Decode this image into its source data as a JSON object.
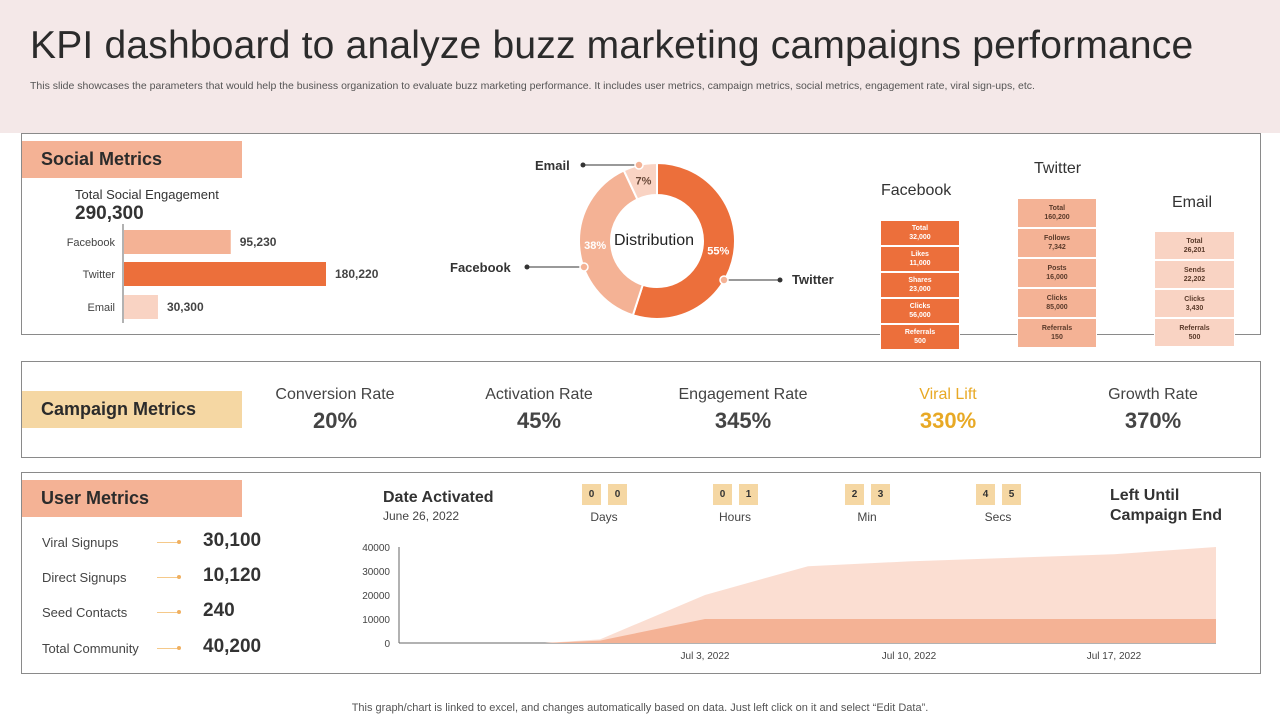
{
  "header": {
    "title": "KPI dashboard to analyze buzz marketing campaigns performance",
    "subtitle": "This slide showcases the parameters that would help the business organization to evaluate buzz  marketing performance. It includes user metrics, campaign metrics, social metrics, engagement rate, viral sign-ups, etc."
  },
  "social": {
    "label": "Social Metrics",
    "total_label": "Total Social Engagement",
    "total_value": "290,300",
    "distribution_label": "Distribution",
    "callouts": {
      "email": "Email",
      "facebook": "Facebook",
      "twitter": "Twitter"
    },
    "channels": {
      "facebook": {
        "name": "Facebook",
        "blocks": [
          {
            "label": "Total",
            "value": "32,000"
          },
          {
            "label": "Likes",
            "value": "11,000"
          },
          {
            "label": "Shares",
            "value": "23,000"
          },
          {
            "label": "Clicks",
            "value": "56,000"
          },
          {
            "label": "Referrals",
            "value": "500"
          }
        ]
      },
      "twitter": {
        "name": "Twitter",
        "blocks": [
          {
            "label": "Total",
            "value": "160,200"
          },
          {
            "label": "Follows",
            "value": "7,342"
          },
          {
            "label": "Posts",
            "value": "16,000"
          },
          {
            "label": "Clicks",
            "value": "85,000"
          },
          {
            "label": "Referrals",
            "value": "150"
          }
        ]
      },
      "email": {
        "name": "Email",
        "blocks": [
          {
            "label": "Total",
            "value": "26,201"
          },
          {
            "label": "Sends",
            "value": "22,202"
          },
          {
            "label": "Clicks",
            "value": "3,430"
          },
          {
            "label": "Referrals",
            "value": "500"
          }
        ]
      }
    }
  },
  "campaign": {
    "label": "Campaign Metrics",
    "metrics": [
      {
        "name": "Conversion Rate",
        "value": "20%"
      },
      {
        "name": "Activation Rate",
        "value": "45%"
      },
      {
        "name": "Engagement Rate",
        "value": "345%"
      },
      {
        "name": "Viral Lift",
        "value": "330%"
      },
      {
        "name": "Growth Rate",
        "value": "370%"
      }
    ]
  },
  "user": {
    "label": "User Metrics",
    "metrics": [
      {
        "name": "Viral Signups",
        "value": "30,100"
      },
      {
        "name": "Direct Signups",
        "value": "10,120"
      },
      {
        "name": "Seed Contacts",
        "value": "240"
      },
      {
        "name": "Total Community",
        "value": "40,200"
      }
    ],
    "date_title": "Date Activated",
    "date_value": "June 26, 2022",
    "countdown": [
      {
        "unit": "Days",
        "d1": "0",
        "d2": "0"
      },
      {
        "unit": "Hours",
        "d1": "0",
        "d2": "1"
      },
      {
        "unit": "Min",
        "d1": "2",
        "d2": "3"
      },
      {
        "unit": "Secs",
        "d1": "4",
        "d2": "5"
      }
    ],
    "left_until_line1": "Left Until",
    "left_until_line2": "Campaign End"
  },
  "footer": "This graph/chart is linked to excel,  and changes automatically based on data. Just left click on it and select “Edit Data”.",
  "colors": {
    "dark": "#ec6f3b",
    "mid": "#f4b295",
    "light": "#f9d3c3",
    "gold": "#e8a925",
    "label_orange": "#f4b295",
    "label_gold": "#f5d7a3"
  },
  "chart_data": [
    {
      "type": "bar",
      "orientation": "horizontal",
      "categories": [
        "Facebook",
        "Twitter",
        "Email"
      ],
      "values": [
        95230,
        180220,
        30300
      ],
      "value_labels": [
        "95,230",
        "180,220",
        "30,300"
      ]
    },
    {
      "type": "pie",
      "title": "Distribution",
      "labels": [
        "Twitter",
        "Facebook",
        "Email"
      ],
      "values": [
        55,
        38,
        7
      ],
      "value_labels": [
        "55%",
        "38%",
        "7%"
      ]
    },
    {
      "type": "area",
      "x": [
        "Jun 26, 2022",
        "Jun 29, 2022",
        "Jul 1, 2022",
        "Jul 3, 2022",
        "Jul 6, 2022",
        "Jul 10, 2022",
        "Jul 17, 2022",
        "Jul 21, 2022"
      ],
      "xticks": [
        "Jul 3, 2022",
        "Jul 10, 2022",
        "Jul 17, 2022"
      ],
      "yticks": [
        "40000",
        "30000",
        "20000",
        "10000",
        "0"
      ],
      "ylim": [
        0,
        40000
      ],
      "series": [
        {
          "values": [
            0,
            0,
            1000,
            10000,
            10000,
            10000,
            10000,
            10000
          ]
        },
        {
          "values": [
            0,
            0,
            1500,
            20000,
            32000,
            34000,
            37000,
            40000
          ]
        }
      ]
    }
  ]
}
